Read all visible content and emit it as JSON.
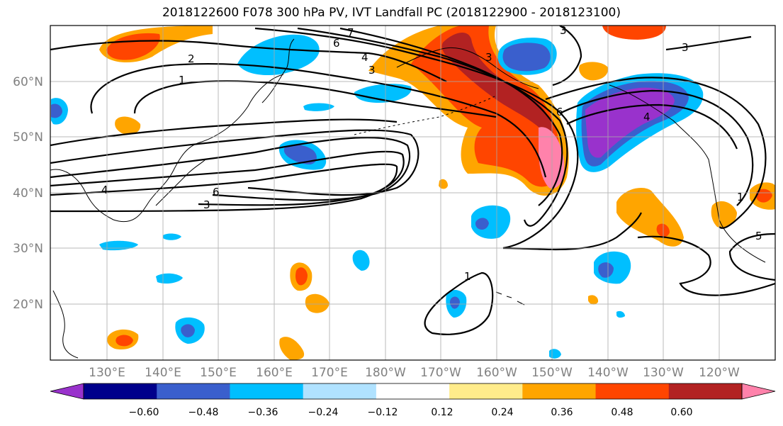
{
  "title": "2018122600 F078 300 hPa PV, IVT Landfall PC (2018122900 - 2018123100)",
  "lat_labels": [
    "60°N",
    "50°N",
    "40°N",
    "30°N",
    "20°N"
  ],
  "lon_labels": [
    "130°E",
    "140°E",
    "150°E",
    "160°E",
    "170°E",
    "180°W",
    "170°W",
    "160°W",
    "150°W",
    "140°W",
    "130°W",
    "120°W"
  ],
  "colorbar": {
    "ticks": [
      "−0.60",
      "−0.48",
      "−0.36",
      "−0.24",
      "−0.12",
      "0.12",
      "0.24",
      "0.36",
      "0.48",
      "0.60"
    ],
    "colors": [
      "#9932cc",
      "#00008b",
      "#3a5fcd",
      "#00bfff",
      "#b0e2ff",
      "#ffffff",
      "#ffec8b",
      "#ffa500",
      "#ff4500",
      "#b22222",
      "#ff82ab"
    ]
  },
  "contour_labels": [
    "1",
    "2",
    "3",
    "4",
    "5",
    "6",
    "7"
  ]
}
